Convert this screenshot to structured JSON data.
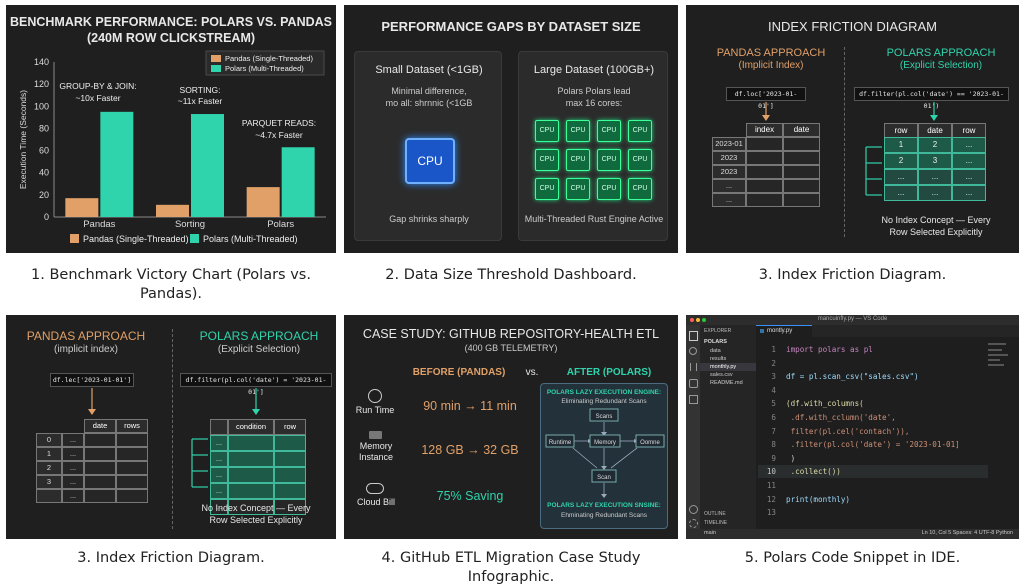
{
  "captions": {
    "c1a": "1. Benchmark Victory Chart (Polars vs.",
    "c1b": "Pandas).",
    "c2": "2. Data Size Threshold Dashboard.",
    "c3": "3. Index Friction Diagram.",
    "c4": "3. Index Friction Diagram.",
    "c5": "4. GitHub ETL Migration Case Study Infographic.",
    "c6": "5. Polars Code Snippet in IDE."
  },
  "chart_data": {
    "type": "bar",
    "title": "BENCHMARK PERFORMANCE: POLARS VS. PANDAS",
    "subtitle": "(240M ROW CLICKSTREAM)",
    "ylabel": "Execution Time (Seconds)",
    "xlabel": "",
    "categories": [
      "Pandas",
      "Sorting",
      "Polars"
    ],
    "ylim": [
      0,
      140
    ],
    "yticks": [
      0,
      20,
      40,
      60,
      80,
      100,
      120,
      140
    ],
    "series": [
      {
        "name": "Pandas (Single-Threaded)",
        "values": [
          17,
          11,
          27
        ],
        "color": "#e0a068"
      },
      {
        "name": "Polars (Multi-Threaded)",
        "values": [
          95,
          93,
          63
        ],
        "color": "#2fd3ac"
      }
    ],
    "annotations": [
      "GROUP-BY & JOIN:",
      "~10x Faster",
      "SORTING:",
      "~11x Faster",
      "PARQUET READS:",
      "~4.7x Faster"
    ],
    "legend_placement": "top-right"
  },
  "p2": {
    "title": "PERFORMANCE GAPS BY DATASET SIZE",
    "small_title": "Small Dataset (<1GB)",
    "small_line1": "Minimal difference,",
    "small_line2": "mo all: shrnnic (<1GB",
    "cpu": "CPU",
    "small_footer": "Gap shrinks sharply",
    "large_title": "Large Dataset (100GB+)",
    "large_line1": "Polars Polars lead",
    "large_line2": "max 16 cores:",
    "large_footer": "Multi-Threaded Rust Engine Active"
  },
  "p3": {
    "title": "INDEX FRICTION DIAGRAM",
    "pandas_head": "PANDAS APPROACH",
    "pandas_sub": "(Implicit Index)",
    "polars_head": "POLARS APPROACH",
    "polars_sub": "(Explicit Selection)",
    "pandas_code": "df.loc['2023-01-01']",
    "polars_code": "df.filter(pl.col('date') == '2023-01-01')",
    "pandas_cols": [
      "index",
      "date"
    ],
    "pandas_index": [
      "2023-01",
      "2023",
      "2023",
      "...",
      "..."
    ],
    "polars_cols": [
      "row",
      "date",
      "row"
    ],
    "polars_rows": [
      [
        "1",
        "2",
        "..."
      ],
      [
        "2",
        "3",
        "..."
      ],
      [
        "...",
        "...",
        "..."
      ],
      [
        "...",
        "...",
        "..."
      ]
    ],
    "footer1": "No Index Concept — Every",
    "footer2": "Row Selected Explicitly"
  },
  "p4": {
    "pandas_head": "PANDAS APPROACH",
    "pandas_sub": "(implicit index)",
    "polars_head": "POLARS APPROACH",
    "polars_sub": "(Explicit Selection)",
    "pandas_code": "df.lec['2023-01-01']",
    "polars_code": "df.filter(pl.col('date') = '2023-01-01']",
    "pandas_cols": [
      "date",
      "rows"
    ],
    "pandas_index": [
      "0",
      "1",
      "2",
      "3",
      ""
    ],
    "polars_cols": [
      "condition",
      "row"
    ],
    "footer1": "No Index Concept — Every",
    "footer2": "Row Selected Explicitly"
  },
  "p5": {
    "title": "CASE STUDY: GITHUB REPOSITORY-HEALTH ETL",
    "subtitle": "(400 GB TELEMETRY)",
    "before": "BEFORE (PANDAS)",
    "vs": "vs.",
    "after": "AFTER (POLARS)",
    "metrics": [
      {
        "label": "Run Time",
        "value": "90 min → 11 min"
      },
      {
        "label": "Memory Instance",
        "value": "128 GB → 32 GB"
      },
      {
        "label": "Cloud Bill",
        "value": "75% Saving"
      }
    ],
    "engine_title": "POLARS LAZY EXECUTION ENGINE:",
    "engine_sub": "Eliminating Redundant Scans",
    "nodes": [
      "Scans",
      "Runtime",
      "Memory",
      "Oomne",
      "Scan"
    ],
    "engine_title2": "POLARS LAZY EXECUTION SNSINE:",
    "engine_sub2": "Ehminating Redundant Scans"
  },
  "p6": {
    "window_title": "mancuinfly.py — VS Code",
    "tab": "montly.py",
    "explorer": "EXPLORER",
    "tree": [
      "POLARS",
      "data",
      "results",
      "monthly.py",
      "sales.csv",
      "README.md"
    ],
    "line_numbers": [
      "1",
      "2",
      "3",
      "4",
      "5",
      "6",
      "7",
      "8",
      "9",
      "10",
      "11",
      "12",
      "13"
    ],
    "code_lines": [
      "import polars as pl",
      "",
      "df = pl.scan_csv(\"sales.csv\")",
      "",
      "(df.with_columns(",
      "    .df.with_cclumn('date',",
      "        filter(pl.cel('contach')),",
      "        .filter(pl.col('date') = '2023-01-01]",
      "    )",
      "    .collect())",
      "",
      "print(monthly)",
      ""
    ],
    "status_left": "main",
    "status_right": "Ln 10, Col 5   Spaces: 4   UTF-8   Python",
    "outline": "OUTLINE",
    "timeline": "TIMELINE"
  }
}
